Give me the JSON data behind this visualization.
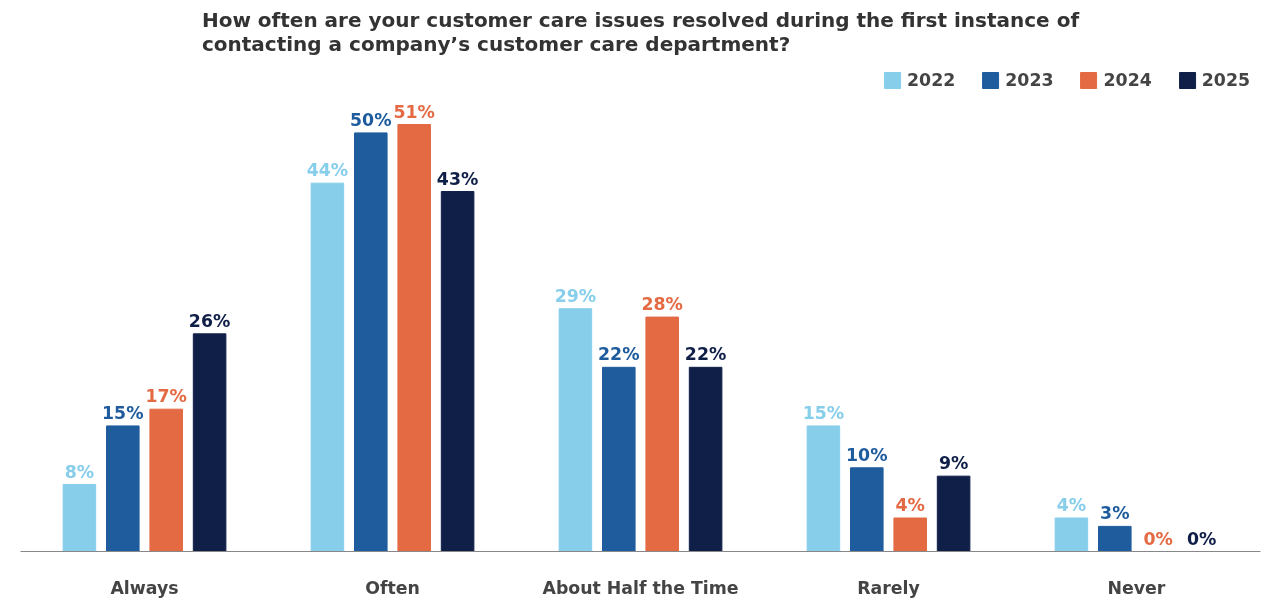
{
  "chart_data": {
    "type": "bar",
    "title": "How often are your customer care issues resolved during the first instance of contacting a company’s customer care department?",
    "categories": [
      "Always",
      "Often",
      "About Half the Time",
      "Rarely",
      "Never"
    ],
    "series": [
      {
        "name": "2022",
        "color": "#87ceeb",
        "values": [
          8,
          44,
          29,
          15,
          4
        ],
        "value_labels": [
          "8%",
          "44%",
          "29%",
          "15%",
          "4%"
        ]
      },
      {
        "name": "2023",
        "color": "#1f5c9e",
        "values": [
          15,
          50,
          22,
          10,
          3
        ],
        "value_labels": [
          "15%",
          "50%",
          "22%",
          "10%",
          "3%"
        ]
      },
      {
        "name": "2024",
        "color": "#e36a43",
        "values": [
          17,
          51,
          28,
          4,
          0
        ],
        "value_labels": [
          "17%",
          "51%",
          "28%",
          "4%",
          "0%"
        ]
      },
      {
        "name": "2025",
        "color": "#0f1f47",
        "values": [
          26,
          43,
          22,
          9,
          0
        ],
        "value_labels": [
          "26%",
          "43%",
          "22%",
          "9%",
          "0%"
        ]
      }
    ],
    "legend": "top right",
    "grid": false
  }
}
